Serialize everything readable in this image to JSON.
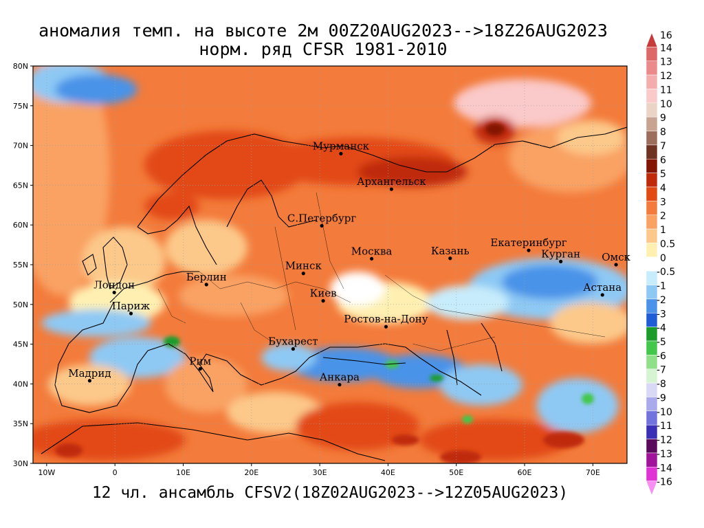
{
  "title_line1": "аномалия темп. на высоте 2м 00Z20AUG2023-->18Z26AUG2023",
  "title_line2": "норм. ряд CFSR 1981-2010",
  "footer": "12 чл. ансамбль CFSV2(18Z02AUG2023-->12Z05AUG2023)",
  "map_extent": {
    "lon": [
      -12,
      75
    ],
    "lat": [
      30,
      80
    ]
  },
  "lat_ticks": [
    "30N",
    "35N",
    "40N",
    "45N",
    "50N",
    "55N",
    "60N",
    "65N",
    "70N",
    "75N",
    "80N"
  ],
  "lon_ticks": [
    "10W",
    "0",
    "10E",
    "20E",
    "30E",
    "40E",
    "50E",
    "60E",
    "70E"
  ],
  "cities": [
    {
      "name": "Мурманск",
      "lon": 33.1,
      "lat": 68.97
    },
    {
      "name": "Архангельск",
      "lon": 40.5,
      "lat": 64.5
    },
    {
      "name": "С.Петербург",
      "lon": 30.3,
      "lat": 59.9
    },
    {
      "name": "Москва",
      "lon": 37.6,
      "lat": 55.75
    },
    {
      "name": "Казань",
      "lon": 49.1,
      "lat": 55.8
    },
    {
      "name": "Екатеринбург",
      "lon": 60.6,
      "lat": 56.8
    },
    {
      "name": "Курган",
      "lon": 65.3,
      "lat": 55.4
    },
    {
      "name": "Омск",
      "lon": 73.4,
      "lat": 55.0
    },
    {
      "name": "Астана",
      "lon": 71.4,
      "lat": 51.2
    },
    {
      "name": "Минск",
      "lon": 27.6,
      "lat": 53.9
    },
    {
      "name": "Берлин",
      "lon": 13.4,
      "lat": 52.5
    },
    {
      "name": "Лондон",
      "lon": -0.1,
      "lat": 51.5
    },
    {
      "name": "Париж",
      "lon": 2.35,
      "lat": 48.86
    },
    {
      "name": "Киев",
      "lon": 30.5,
      "lat": 50.45
    },
    {
      "name": "Ростов-на-Дону",
      "lon": 39.7,
      "lat": 47.2
    },
    {
      "name": "Бухарест",
      "lon": 26.1,
      "lat": 44.4
    },
    {
      "name": "Рим",
      "lon": 12.5,
      "lat": 41.9
    },
    {
      "name": "Мадрид",
      "lon": -3.7,
      "lat": 40.4
    },
    {
      "name": "Анкара",
      "lon": 32.9,
      "lat": 39.9
    }
  ],
  "colorbar": [
    {
      "label": "16",
      "color": "#c73b3b"
    },
    {
      "label": "14",
      "color": "#dd6868"
    },
    {
      "label": "13",
      "color": "#ea8a8a"
    },
    {
      "label": "12",
      "color": "#f4adad"
    },
    {
      "label": "11",
      "color": "#fac9c9"
    },
    {
      "label": "10",
      "color": "#ebd3c6"
    },
    {
      "label": "9",
      "color": "#c9a392"
    },
    {
      "label": "8",
      "color": "#9e6e5c"
    },
    {
      "label": "7",
      "color": "#6e3323"
    },
    {
      "label": "6",
      "color": "#841505"
    },
    {
      "label": "5",
      "color": "#bf2a0a"
    },
    {
      "label": "4",
      "color": "#e24a14"
    },
    {
      "label": "3",
      "color": "#f37b3b"
    },
    {
      "label": "2",
      "color": "#f9a264"
    },
    {
      "label": "1",
      "color": "#fcc98a"
    },
    {
      "label": "0.5",
      "color": "#fff0b2"
    },
    {
      "label": "0",
      "color": "#ffffff"
    },
    {
      "label": "-0.5",
      "color": "#c7ecfb"
    },
    {
      "label": "-1",
      "color": "#8ec9f4"
    },
    {
      "label": "-2",
      "color": "#4a93e8"
    },
    {
      "label": "-3",
      "color": "#1f5dd6"
    },
    {
      "label": "-4",
      "color": "#1b9c2a"
    },
    {
      "label": "-5",
      "color": "#43c74a"
    },
    {
      "label": "-6",
      "color": "#8fe089"
    },
    {
      "label": "-7",
      "color": "#d6f3d2"
    },
    {
      "label": "-8",
      "color": "#d9d9f6"
    },
    {
      "label": "-9",
      "color": "#a9a9ec"
    },
    {
      "label": "-10",
      "color": "#7373de"
    },
    {
      "label": "-11",
      "color": "#3a2fb5"
    },
    {
      "label": "-12",
      "color": "#5a0a5a"
    },
    {
      "label": "-13",
      "color": "#a0139a"
    },
    {
      "label": "-14",
      "color": "#e033d5"
    },
    {
      "label": "-16",
      "color": "#f78ef2"
    }
  ]
}
